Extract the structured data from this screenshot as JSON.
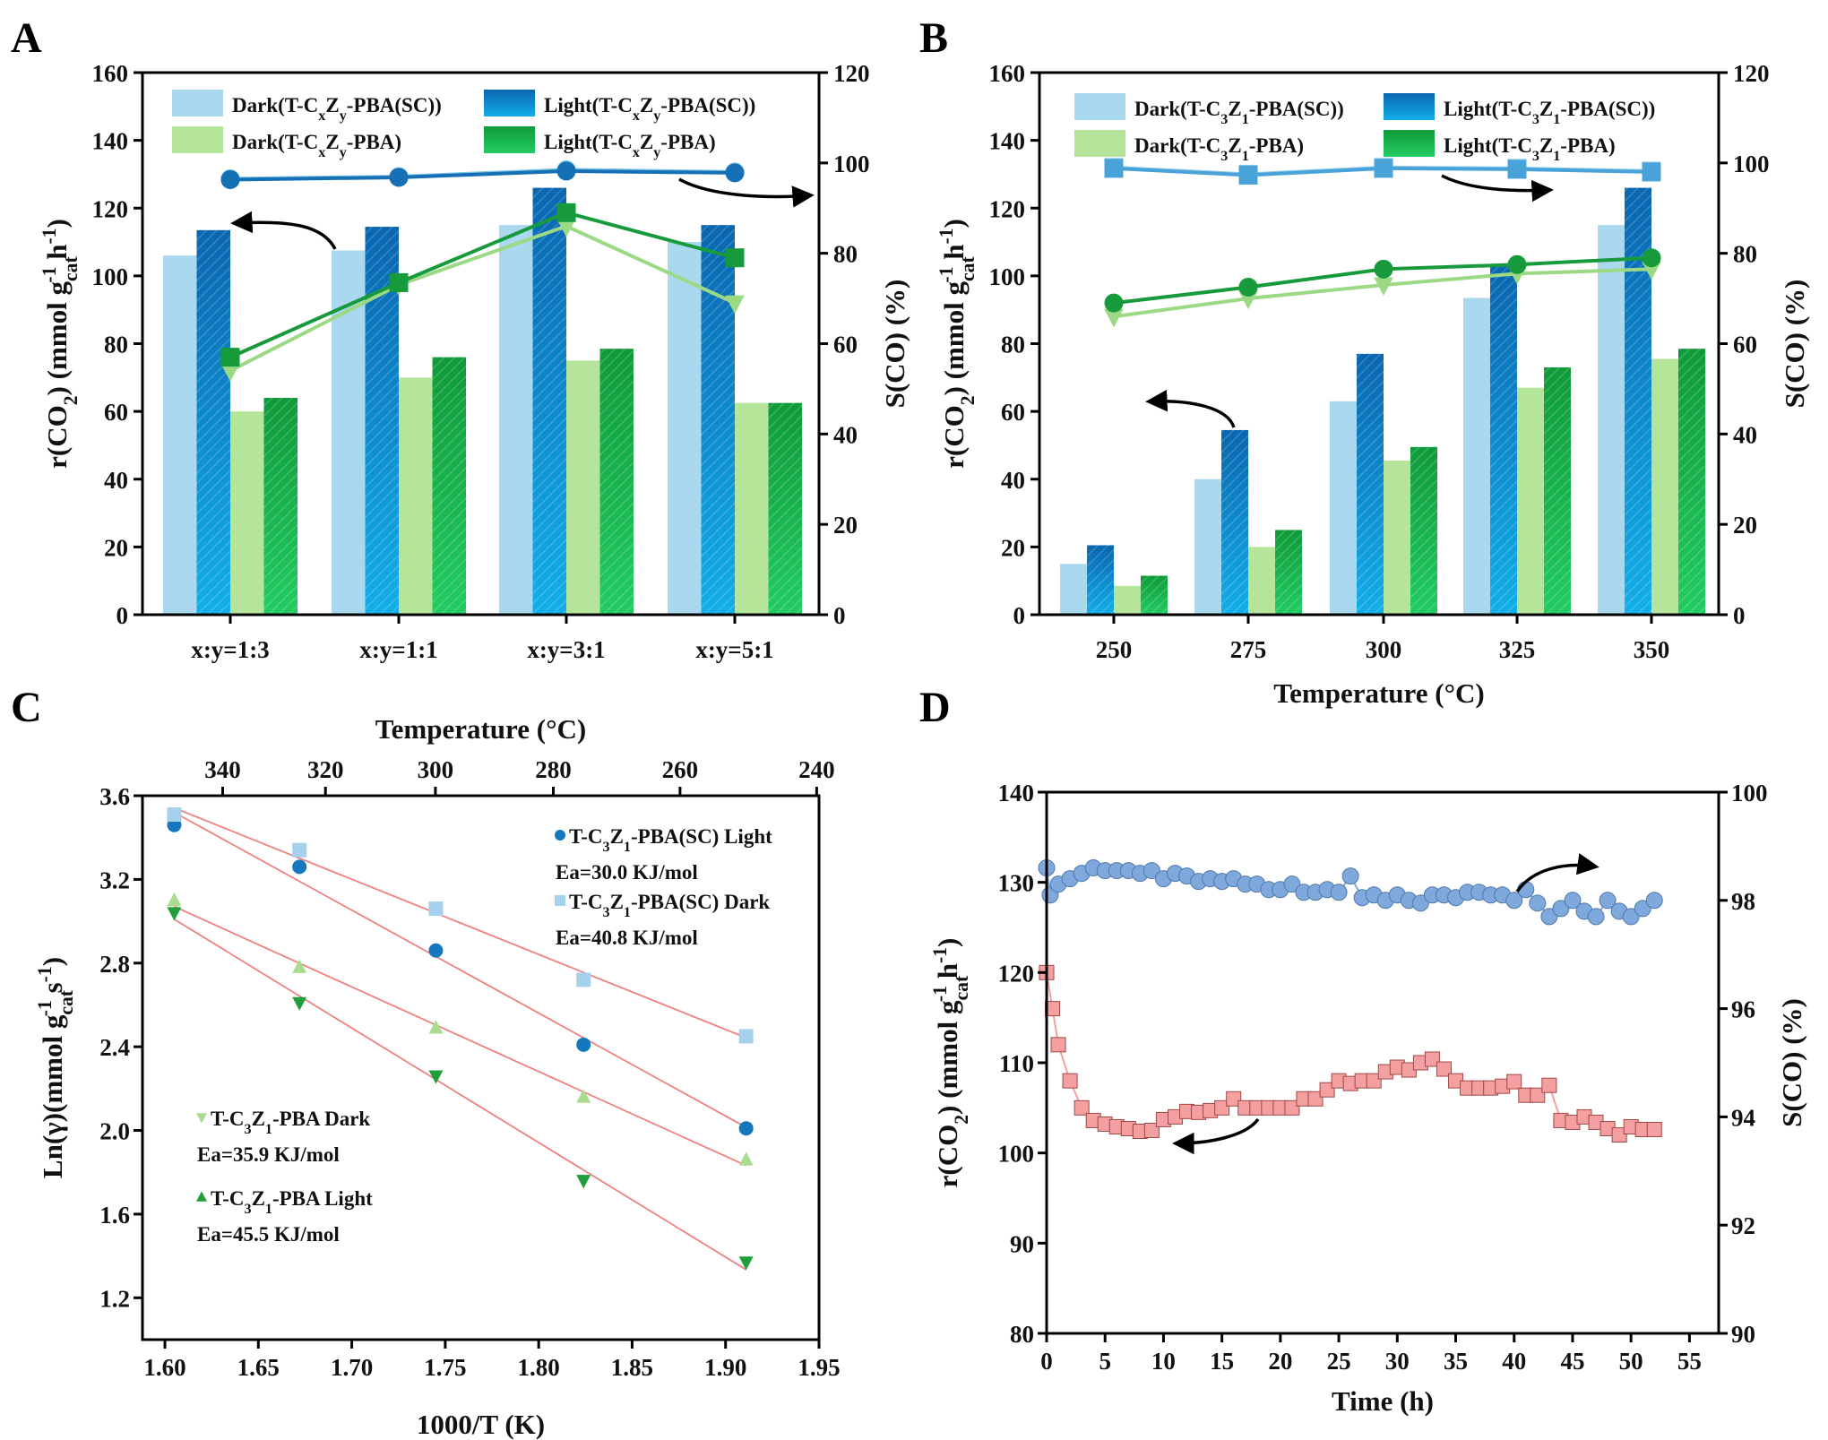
{
  "colors": {
    "dark_sc": "#a9d8ef",
    "light_sc": "#0f78c2",
    "dark_pba": "#b4e59b",
    "light_pba": "#16a94a",
    "fit_line": "#f08080",
    "d_rate": "#f4a0a0",
    "d_sel": "#7fa8dc"
  },
  "chart_data": [
    {
      "panel": "A",
      "type": "bar",
      "categories": [
        "x:y=1:3",
        "x:y=1:1",
        "x:y=3:1",
        "x:y=5:1"
      ],
      "ylabel": "r(CO2) (mmol gcat-1 h-1)",
      "y2label": "S(CO) (%)",
      "ylim": [
        0,
        160
      ],
      "y2lim": [
        0,
        120
      ],
      "yticks": [
        0,
        20,
        40,
        60,
        80,
        100,
        120,
        140,
        160
      ],
      "y2ticks": [
        0,
        20,
        40,
        60,
        80,
        100,
        120
      ],
      "legend": [
        "Dark(T-CxZy-PBA(SC))",
        "Light(T-CxZy-PBA(SC))",
        "Dark(T-CxZy-PBA)",
        "Light(T-CxZy-PBA)"
      ],
      "legend_position": "top",
      "series": [
        {
          "name": "Dark(T-CxZy-PBA(SC))",
          "values": [
            106,
            107.5,
            115,
            110
          ]
        },
        {
          "name": "Light(T-CxZy-PBA(SC))",
          "values": [
            113.5,
            114.5,
            126,
            115
          ]
        },
        {
          "name": "Dark(T-CxZy-PBA)",
          "values": [
            60,
            70,
            75,
            62.5
          ]
        },
        {
          "name": "Light(T-CxZy-PBA)",
          "values": [
            64,
            76,
            78.5,
            62.5
          ]
        }
      ],
      "selectivity": [
        {
          "values": [
            96.5,
            97,
            98.5,
            98
          ],
          "marker": "circle",
          "color": "#7cc3e6"
        },
        {
          "values": [
            96.3,
            96.8,
            98.2,
            97.8
          ],
          "marker": "circle",
          "color": "#1570b5"
        },
        {
          "values": [
            54,
            73,
            86,
            69
          ],
          "marker": "triangle-down",
          "color": "#9bd985"
        },
        {
          "values": [
            57,
            73.5,
            89,
            79
          ],
          "marker": "square",
          "color": "#179a3c"
        }
      ]
    },
    {
      "panel": "B",
      "type": "bar",
      "categories": [
        "250",
        "275",
        "300",
        "325",
        "350"
      ],
      "xlabel": "Temperature (°C)",
      "ylabel": "r(CO2) (mmol gcat-1 h-1)",
      "y2label": "S(CO) (%)",
      "ylim": [
        0,
        160
      ],
      "y2lim": [
        0,
        120
      ],
      "yticks": [
        0,
        20,
        40,
        60,
        80,
        100,
        120,
        140,
        160
      ],
      "y2ticks": [
        0,
        20,
        40,
        60,
        80,
        100,
        120
      ],
      "legend": [
        "Dark(T-C3Z1-PBA(SC))",
        "Light(T-C3Z1-PBA(SC))",
        "Dark(T-C3Z1-PBA)",
        "Light(T-C3Z1-PBA)"
      ],
      "legend_position": "top",
      "series": [
        {
          "name": "Dark(T-C3Z1-PBA(SC))",
          "values": [
            15,
            40,
            63,
            93.5,
            115
          ]
        },
        {
          "name": "Light(T-C3Z1-PBA(SC))",
          "values": [
            20.5,
            54.5,
            77,
            103,
            126
          ]
        },
        {
          "name": "Dark(T-C3Z1-PBA)",
          "values": [
            8.5,
            20,
            45.5,
            67,
            75.5
          ]
        },
        {
          "name": "Light(T-C3Z1-PBA)",
          "values": [
            11.5,
            25,
            49.5,
            73,
            78.5
          ]
        }
      ],
      "selectivity": [
        {
          "values": [
            99,
            97.5,
            99,
            98.8,
            98.2
          ],
          "marker": "square",
          "color": "#8ccbe8"
        },
        {
          "values": [
            98.8,
            97.3,
            98.8,
            98.6,
            98
          ],
          "marker": "square",
          "color": "#4aa3d8"
        },
        {
          "values": [
            66,
            70,
            73,
            75.5,
            76.5
          ],
          "marker": "triangle-down",
          "color": "#9bd985"
        },
        {
          "values": [
            69,
            72.5,
            76.5,
            77.5,
            79
          ],
          "marker": "circle",
          "color": "#179a3c"
        }
      ]
    },
    {
      "panel": "C",
      "type": "scatter",
      "xlabel": "1000/T (K)",
      "x2label": "Temperature (°C)",
      "ylabel": "Ln(γ)(mmol gcat-1 s-1)",
      "xlim": [
        1.588,
        1.95
      ],
      "ylim": [
        1.0,
        3.6
      ],
      "xticks": [
        "1.60",
        "1.65",
        "1.70",
        "1.75",
        "1.80",
        "1.85",
        "1.90",
        "1.95"
      ],
      "x2ticks": [
        "340",
        "320",
        "300",
        "280",
        "260",
        "240"
      ],
      "yticks": [
        "1.2",
        "1.6",
        "2.0",
        "2.4",
        "2.8",
        "3.2",
        "3.6"
      ],
      "x": [
        1.605,
        1.672,
        1.745,
        1.824,
        1.911
      ],
      "series": [
        {
          "name": "T-C3Z1-PBA(SC) Light",
          "ea": "Ea=30.0 KJ/mol",
          "values": [
            3.46,
            3.26,
            2.86,
            2.41,
            2.01
          ],
          "marker": "circle",
          "color": "#1577bd"
        },
        {
          "name": "T-C3Z1-PBA(SC)  Dark",
          "ea": "Ea=40.8 KJ/mol",
          "values": [
            3.51,
            3.34,
            3.06,
            2.72,
            2.45
          ],
          "marker": "square",
          "color": "#a6d1ec"
        },
        {
          "name": "T-C3Z1-PBA Dark",
          "ea": "Ea=35.9 KJ/mol",
          "values": [
            3.1,
            2.78,
            2.49,
            2.16,
            1.86
          ],
          "marker": "triangle-up",
          "color": "#a9dc8e"
        },
        {
          "name": "T-C3Z1-PBA Light",
          "ea": "Ea=45.5 KJ/mol",
          "values": [
            3.04,
            2.61,
            2.26,
            1.76,
            1.37
          ],
          "marker": "triangle-down",
          "color": "#1f9e3a"
        }
      ],
      "legend_markers": [
        "circle",
        "square",
        "triangle-down",
        "triangle-up"
      ]
    },
    {
      "panel": "D",
      "type": "scatter",
      "xlabel": "Time (h)",
      "ylabel": "r(CO2) (mmol gcat-1 h-1)",
      "y2label": "S(CO) (%)",
      "xlim": [
        0,
        57.5
      ],
      "ylim": [
        80,
        140
      ],
      "y2lim": [
        90,
        100
      ],
      "xticks": [
        0,
        5,
        10,
        15,
        20,
        25,
        30,
        35,
        40,
        45,
        50,
        55
      ],
      "yticks": [
        80,
        90,
        100,
        110,
        120,
        130,
        140
      ],
      "y2ticks": [
        90,
        92,
        94,
        96,
        98,
        100
      ],
      "rate": {
        "x": [
          0,
          0.5,
          1,
          2,
          3,
          4,
          5,
          6,
          7,
          8,
          9,
          10,
          11,
          12,
          13,
          14,
          15,
          16,
          17,
          18,
          19,
          20,
          21,
          22,
          23,
          24,
          25,
          26,
          27,
          28,
          29,
          30,
          31,
          32,
          33,
          34,
          35,
          36,
          37,
          38,
          39,
          40,
          41,
          42,
          43,
          44,
          45,
          46,
          47,
          48,
          49,
          50,
          51,
          52
        ],
        "values": [
          120,
          116,
          112,
          108,
          105,
          103.6,
          103.2,
          102.9,
          102.7,
          102.4,
          102.5,
          103.7,
          104,
          104.6,
          104.5,
          104.7,
          105,
          106,
          105,
          105,
          105,
          105,
          105,
          106,
          106,
          107,
          108,
          107.7,
          108,
          108,
          109,
          109.5,
          109.2,
          110,
          110.4,
          109.3,
          108,
          107.2,
          107.2,
          107.2,
          107.4,
          107.9,
          106.4,
          106.4,
          107.5,
          103.6,
          103.4,
          104,
          103.4,
          102.7,
          102,
          102.9,
          102.6,
          102.6
        ]
      },
      "selectivity": {
        "x": [
          0,
          0.3,
          1,
          2,
          3,
          4,
          5,
          6,
          7,
          8,
          9,
          10,
          11,
          12,
          13,
          14,
          15,
          16,
          17,
          18,
          19,
          20,
          21,
          22,
          23,
          24,
          25,
          26,
          27,
          28,
          29,
          30,
          31,
          32,
          33,
          34,
          35,
          36,
          37,
          38,
          39,
          40,
          41,
          42,
          43,
          44,
          45,
          46,
          47,
          48,
          49,
          50,
          51,
          52
        ],
        "values": [
          98.6,
          98.1,
          98.3,
          98.4,
          98.5,
          98.6,
          98.55,
          98.55,
          98.55,
          98.5,
          98.55,
          98.4,
          98.5,
          98.45,
          98.35,
          98.4,
          98.35,
          98.4,
          98.3,
          98.3,
          98.2,
          98.2,
          98.3,
          98.15,
          98.15,
          98.2,
          98.15,
          98.45,
          98.05,
          98.1,
          98.0,
          98.1,
          98.0,
          97.95,
          98.1,
          98.1,
          98.05,
          98.15,
          98.15,
          98.1,
          98.1,
          98.0,
          98.2,
          97.95,
          97.7,
          97.85,
          98.0,
          97.8,
          97.7,
          98.0,
          97.8,
          97.7,
          97.85,
          98.0
        ]
      }
    }
  ]
}
